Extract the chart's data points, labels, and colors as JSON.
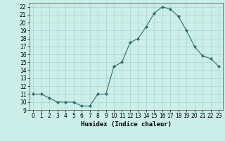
{
  "x": [
    0,
    1,
    2,
    3,
    4,
    5,
    6,
    7,
    8,
    9,
    10,
    11,
    12,
    13,
    14,
    15,
    16,
    17,
    18,
    19,
    20,
    21,
    22,
    23
  ],
  "y": [
    11,
    11,
    10.5,
    10,
    10,
    10,
    9.5,
    9.5,
    11,
    11,
    14.5,
    15,
    17.5,
    18,
    19.5,
    21.2,
    22,
    21.7,
    20.8,
    19,
    17,
    15.8,
    15.5,
    14.5
  ],
  "xlabel": "Humidex (Indice chaleur)",
  "ylim": [
    9,
    22.5
  ],
  "xlim": [
    -0.5,
    23.5
  ],
  "yticks": [
    9,
    10,
    11,
    12,
    13,
    14,
    15,
    16,
    17,
    18,
    19,
    20,
    21,
    22
  ],
  "xticks": [
    0,
    1,
    2,
    3,
    4,
    5,
    6,
    7,
    8,
    9,
    10,
    11,
    12,
    13,
    14,
    15,
    16,
    17,
    18,
    19,
    20,
    21,
    22,
    23
  ],
  "line_color": "#2d6e6e",
  "marker_color": "#2d6e6e",
  "bg_color": "#cceee8",
  "grid_color": "#aad4ce",
  "xlabel_fontsize": 6.5,
  "tick_fontsize": 5.5
}
